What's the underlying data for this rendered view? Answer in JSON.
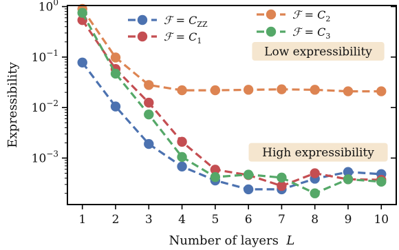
{
  "chart_data": {
    "type": "line",
    "title": "",
    "xlabel_prefix": "Number of layers ",
    "xlabel_var": "L",
    "ylabel": "Expressibility",
    "yscale": "log",
    "ylim": [
      0.00012,
      1.05
    ],
    "xlim": [
      0.55,
      10.45
    ],
    "x": [
      1,
      2,
      3,
      4,
      5,
      6,
      7,
      8,
      9,
      10
    ],
    "x_tick_labels": [
      "1",
      "2",
      "3",
      "4",
      "5",
      "6",
      "7",
      "8",
      "9",
      "10"
    ],
    "y_ticks": [
      {
        "value": 1,
        "base": "10",
        "exp": "0"
      },
      {
        "value": 0.1,
        "base": "10",
        "exp": "−1"
      },
      {
        "value": 0.01,
        "base": "10",
        "exp": "−2"
      },
      {
        "value": 0.001,
        "base": "10",
        "exp": "−3"
      }
    ],
    "grid": false,
    "legend_position": "top-center",
    "series": [
      {
        "name": "C_ZZ",
        "label_prefix": "ℱ = C",
        "label_sub": "ZZ",
        "color": "#4c72b0",
        "values": [
          0.078,
          0.0105,
          0.0019,
          0.00068,
          0.00036,
          0.00024,
          0.00024,
          0.00039,
          0.00053,
          0.00048
        ]
      },
      {
        "name": "C_1",
        "label_prefix": "ℱ = C",
        "label_sub": "1",
        "color": "#c44e52",
        "values": [
          0.54,
          0.058,
          0.0125,
          0.0021,
          0.00059,
          0.00046,
          0.00028,
          0.0005,
          0.00038,
          0.00037
        ]
      },
      {
        "name": "C_2",
        "label_prefix": "ℱ = C",
        "label_sub": "2",
        "color": "#dd8452",
        "values": [
          0.9,
          0.098,
          0.028,
          0.022,
          0.022,
          0.0225,
          0.023,
          0.0225,
          0.021,
          0.021
        ]
      },
      {
        "name": "C_3",
        "label_prefix": "ℱ = C",
        "label_sub": "3",
        "color": "#55a868",
        "values": [
          0.75,
          0.047,
          0.0073,
          0.00105,
          0.00042,
          0.00047,
          0.00041,
          0.0002,
          0.00038,
          0.00034
        ]
      }
    ],
    "annotations": [
      {
        "text": "Low expressibility",
        "x": 8.1,
        "y": 0.13,
        "fill": "#f5e6cf"
      },
      {
        "text": "High expressibility",
        "x": 8.1,
        "y": 0.0013,
        "fill": "#f5e6cf"
      }
    ]
  }
}
